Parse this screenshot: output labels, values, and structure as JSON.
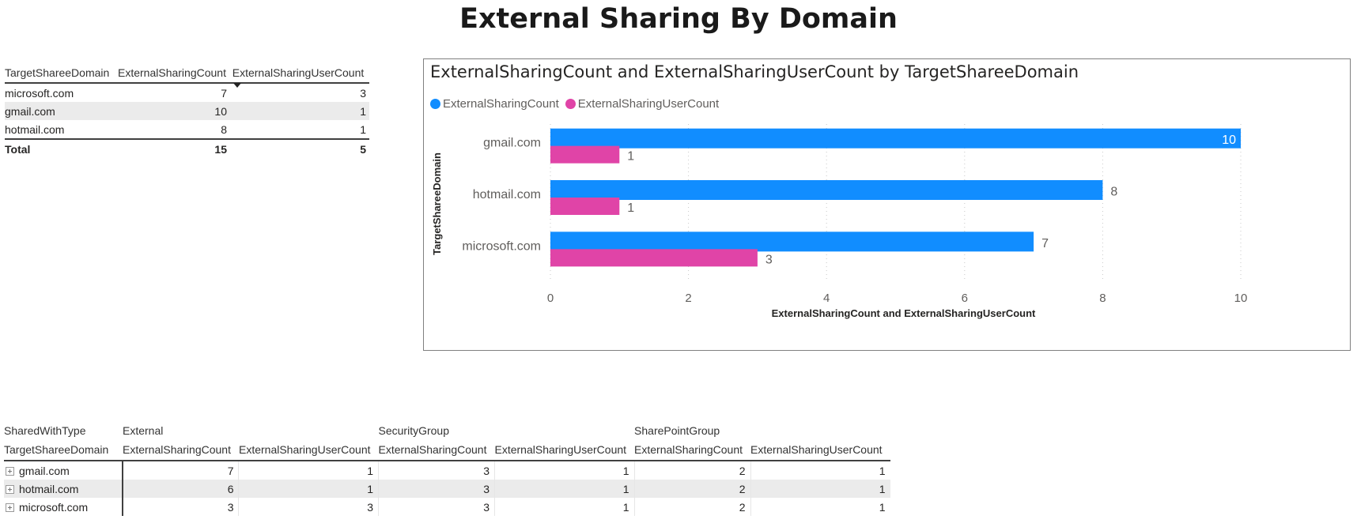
{
  "page": {
    "title": "External Sharing By Domain"
  },
  "summary_table": {
    "columns": [
      "TargetShareeDomain",
      "ExternalSharingCount",
      "ExternalSharingUserCount"
    ],
    "sorted_column": "ExternalSharingUserCount",
    "rows": [
      {
        "domain": "microsoft.com",
        "sharing_count": "7",
        "user_count": "3"
      },
      {
        "domain": "gmail.com",
        "sharing_count": "10",
        "user_count": "1"
      },
      {
        "domain": "hotmail.com",
        "sharing_count": "8",
        "user_count": "1"
      }
    ],
    "total": {
      "label": "Total",
      "sharing_count": "15",
      "user_count": "5"
    }
  },
  "chart": {
    "title": "ExternalSharingCount and ExternalSharingUserCount by TargetShareeDomain",
    "legend": [
      {
        "label": "ExternalSharingCount",
        "color": "#118dff"
      },
      {
        "label": "ExternalSharingUserCount",
        "color": "#e044a7"
      }
    ]
  },
  "chart_data": {
    "type": "bar",
    "orientation": "horizontal",
    "title": "ExternalSharingCount and ExternalSharingUserCount by TargetShareeDomain",
    "categories": [
      "gmail.com",
      "hotmail.com",
      "microsoft.com"
    ],
    "series": [
      {
        "name": "ExternalSharingCount",
        "values": [
          10,
          8,
          7
        ],
        "color": "#118dff"
      },
      {
        "name": "ExternalSharingUserCount",
        "values": [
          1,
          1,
          3
        ],
        "color": "#e044a7"
      }
    ],
    "xlabel": "ExternalSharingCount and ExternalSharingUserCount",
    "ylabel": "TargetShareeDomain",
    "xlim": [
      0,
      10
    ],
    "xticks": [
      "0",
      "2",
      "4",
      "6",
      "8",
      "10"
    ],
    "grid": "vertical dotted",
    "legend_position": "top-left"
  },
  "matrix": {
    "shared_with_type_label": "SharedWithType",
    "row_header": "TargetShareeDomain",
    "groups": [
      "External",
      "SecurityGroup",
      "SharePointGroup"
    ],
    "measures": [
      "ExternalSharingCount",
      "ExternalSharingUserCount"
    ],
    "rows": [
      {
        "domain": "gmail.com",
        "values": [
          "7",
          "1",
          "3",
          "1",
          "2",
          "1"
        ]
      },
      {
        "domain": "hotmail.com",
        "values": [
          "6",
          "1",
          "3",
          "1",
          "2",
          "1"
        ]
      },
      {
        "domain": "microsoft.com",
        "values": [
          "3",
          "3",
          "3",
          "1",
          "2",
          "1"
        ]
      }
    ]
  }
}
